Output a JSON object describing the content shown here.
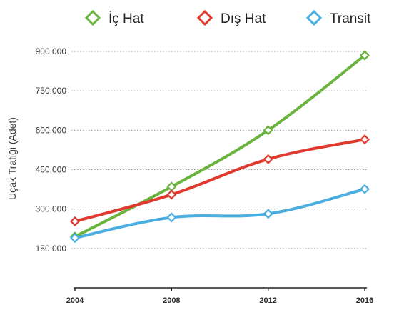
{
  "chart_data": {
    "type": "line",
    "title": "",
    "xlabel": "",
    "ylabel": "Uçak Trafiği (Adet)",
    "x": [
      2004,
      2008,
      2012,
      2016
    ],
    "x_tick_labels": [
      "2004",
      "2008",
      "2012",
      "2016"
    ],
    "y_ticks": [
      150000,
      300000,
      450000,
      600000,
      750000,
      900000
    ],
    "y_tick_labels": [
      "150.000",
      "300.000",
      "450.000",
      "600.000",
      "750.000",
      "900.000"
    ],
    "ylim": [
      0,
      900000
    ],
    "grid": "horizontal dotted",
    "legend_position": "top",
    "series": [
      {
        "name": "İç Hat",
        "color": "#6ab33e",
        "values": [
          195000,
          385000,
          600000,
          885000
        ]
      },
      {
        "name": "Dış Hat",
        "color": "#e03a2f",
        "values": [
          253000,
          355000,
          490000,
          565000
        ]
      },
      {
        "name": "Transit",
        "color": "#4aaee0",
        "values": [
          190000,
          268000,
          282000,
          376000
        ]
      }
    ]
  }
}
